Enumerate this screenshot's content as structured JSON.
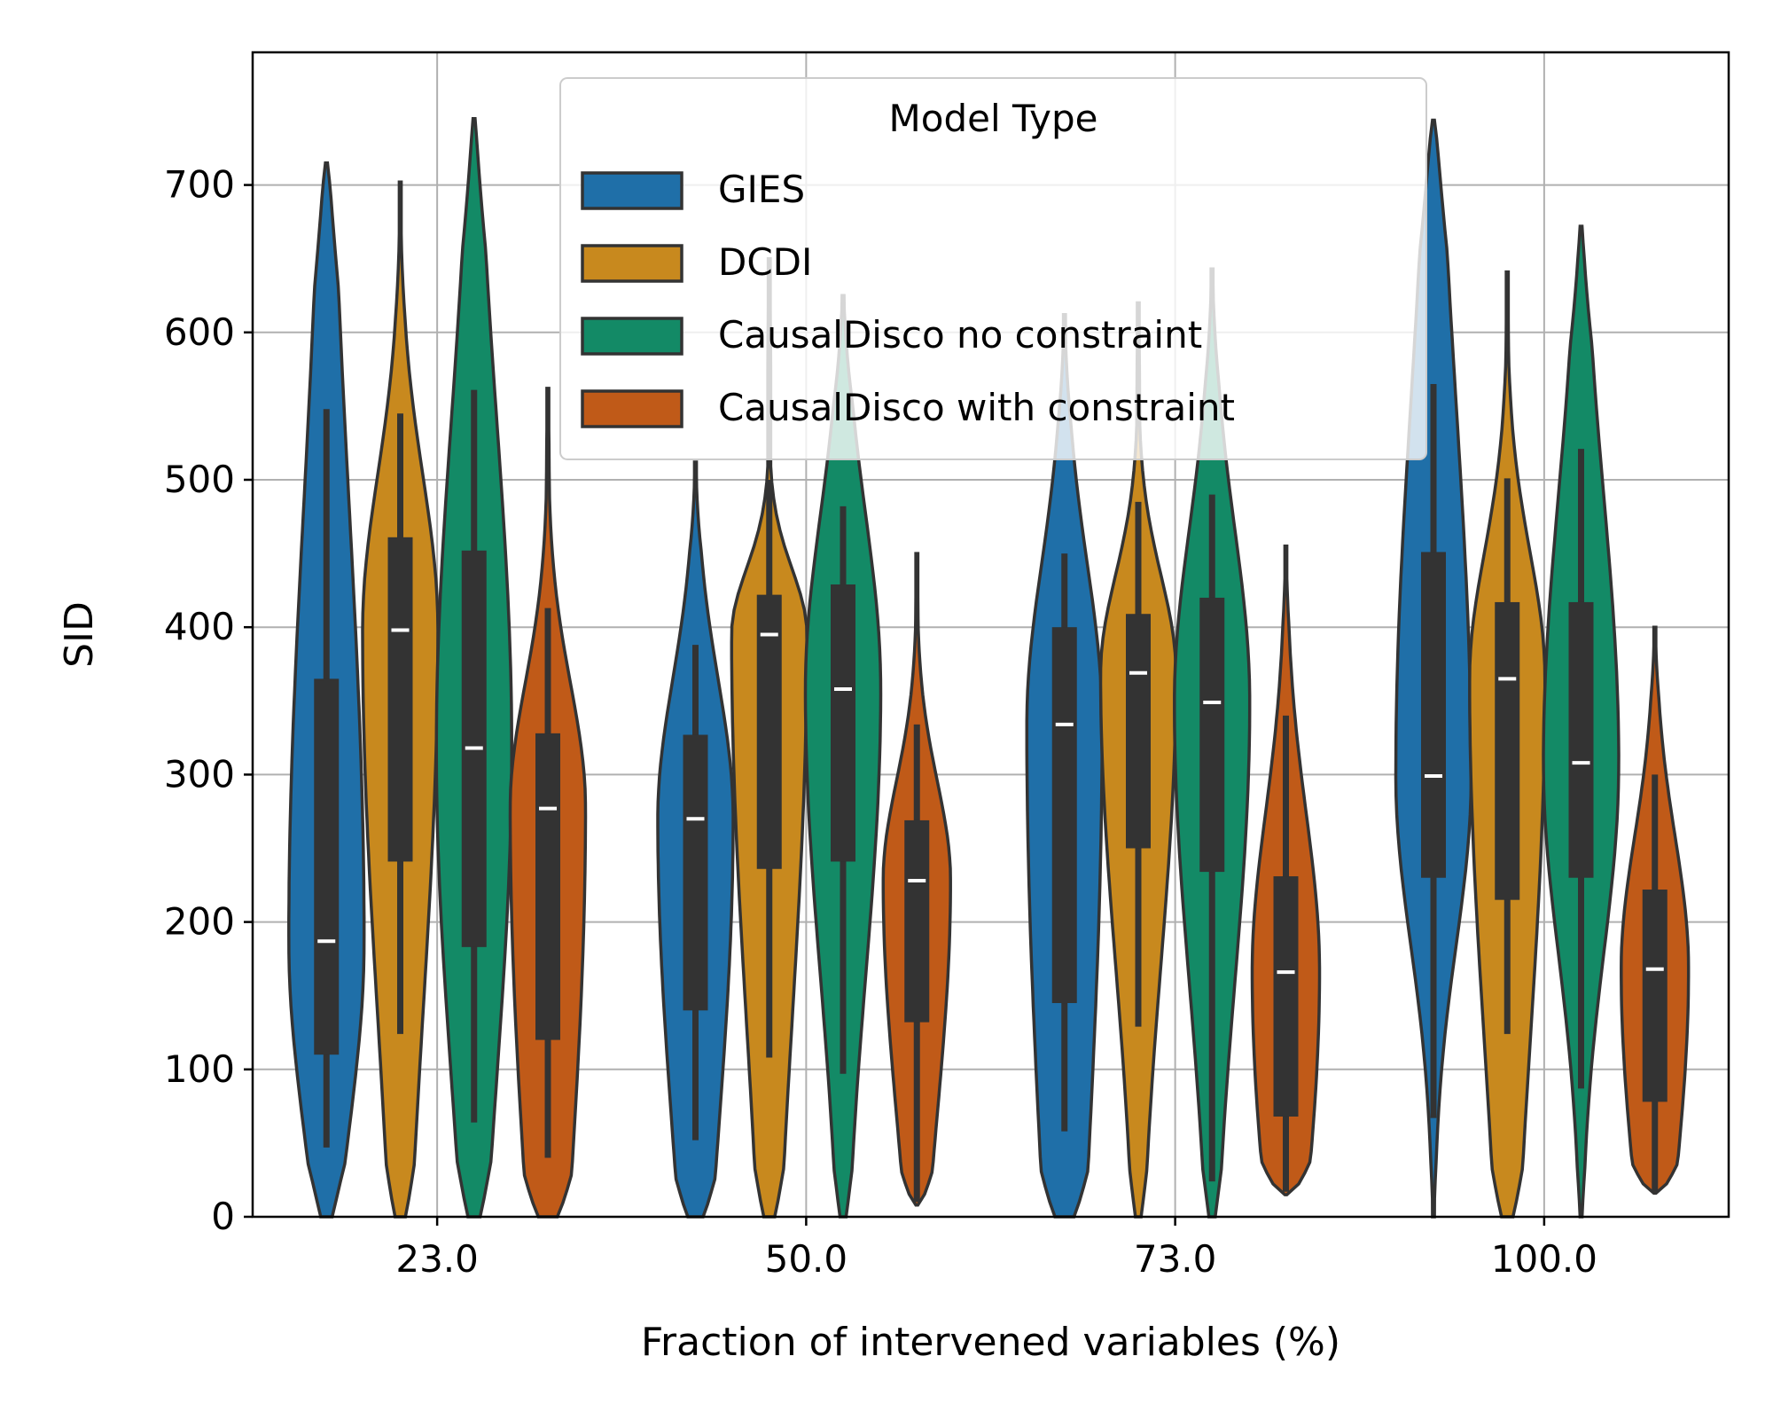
{
  "chart_data": {
    "type": "violin",
    "xlabel": "Fraction of intervened variables (%)",
    "ylabel": "SID",
    "categories": [
      "23.0",
      "50.0",
      "73.0",
      "100.0"
    ],
    "ylim": [
      0,
      790
    ],
    "yticks": [
      0,
      100,
      200,
      300,
      400,
      500,
      600,
      700
    ],
    "grid": true,
    "legend": {
      "title": "Model Type",
      "placement": "top-center"
    },
    "series": [
      {
        "name": "GIES",
        "color": "#1f6fa8",
        "stats": [
          {
            "min": 0,
            "max": 715,
            "q1": 110,
            "median": 187,
            "q3": 365,
            "whisker_low": 47,
            "whisker_high": 548
          },
          {
            "min": 0,
            "max": 512,
            "q1": 140,
            "median": 270,
            "q3": 327,
            "whisker_low": 52,
            "whisker_high": 388
          },
          {
            "min": 0,
            "max": 612,
            "q1": 145,
            "median": 334,
            "q3": 400,
            "whisker_low": 58,
            "whisker_high": 450
          },
          {
            "min": 0,
            "max": 744,
            "q1": 230,
            "median": 299,
            "q3": 451,
            "whisker_low": 67,
            "whisker_high": 565
          }
        ]
      },
      {
        "name": "DCDI",
        "color": "#c8891e",
        "stats": [
          {
            "min": 0,
            "max": 702,
            "q1": 241,
            "median": 398,
            "q3": 461,
            "whisker_low": 124,
            "whisker_high": 545
          },
          {
            "min": 0,
            "max": 650,
            "q1": 236,
            "median": 395,
            "q3": 422,
            "whisker_low": 108,
            "whisker_high": 500
          },
          {
            "min": 0,
            "max": 620,
            "q1": 250,
            "median": 369,
            "q3": 409,
            "whisker_low": 129,
            "whisker_high": 485
          },
          {
            "min": 0,
            "max": 641,
            "q1": 215,
            "median": 365,
            "q3": 417,
            "whisker_low": 124,
            "whisker_high": 501
          }
        ]
      },
      {
        "name": "CausalDisco no constraint",
        "color": "#138a66",
        "stats": [
          {
            "min": 0,
            "max": 745,
            "q1": 183,
            "median": 318,
            "q3": 452,
            "whisker_low": 64,
            "whisker_high": 561
          },
          {
            "min": 0,
            "max": 625,
            "q1": 241,
            "median": 358,
            "q3": 429,
            "whisker_low": 97,
            "whisker_high": 482
          },
          {
            "min": 0,
            "max": 643,
            "q1": 234,
            "median": 349,
            "q3": 420,
            "whisker_low": 24,
            "whisker_high": 490
          },
          {
            "min": 0,
            "max": 672,
            "q1": 230,
            "median": 308,
            "q3": 417,
            "whisker_low": 87,
            "whisker_high": 521
          }
        ]
      },
      {
        "name": "CausalDisco with constraint",
        "color": "#c05a18",
        "stats": [
          {
            "min": 0,
            "max": 562,
            "q1": 120,
            "median": 277,
            "q3": 328,
            "whisker_low": 40,
            "whisker_high": 413
          },
          {
            "min": 8,
            "max": 450,
            "q1": 132,
            "median": 228,
            "q3": 269,
            "whisker_low": 10,
            "whisker_high": 334
          },
          {
            "min": 15,
            "max": 455,
            "q1": 68,
            "median": 166,
            "q3": 231,
            "whisker_low": 17,
            "whisker_high": 340
          },
          {
            "min": 16,
            "max": 400,
            "q1": 78,
            "median": 168,
            "q3": 222,
            "whisker_low": 17,
            "whisker_high": 300
          }
        ]
      }
    ]
  }
}
